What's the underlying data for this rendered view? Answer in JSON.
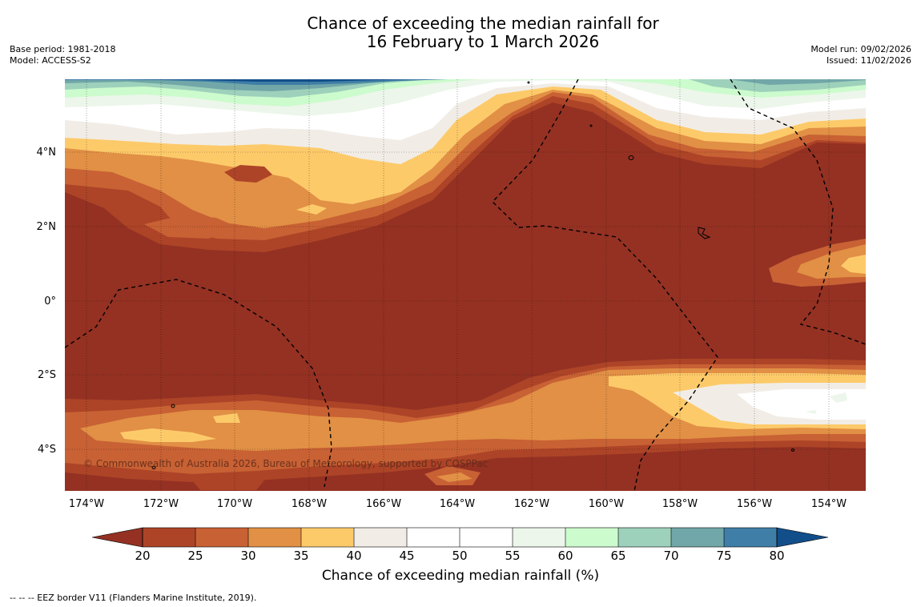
{
  "title": {
    "line1": "Chance of exceeding the median rainfall for",
    "line2": "16 February to 1 March 2026"
  },
  "meta_left": {
    "base_period": "Base period: 1981-2018",
    "model": "Model: ACCESS-S2"
  },
  "meta_right": {
    "model_run": "Model run: 09/02/2026",
    "issued": "Issued: 11/02/2026"
  },
  "map": {
    "lat_ticks": [
      "4°N",
      "2°N",
      "0°",
      "2°S",
      "4°S"
    ],
    "lon_ticks": [
      "174°W",
      "172°W",
      "170°W",
      "168°W",
      "166°W",
      "164°W",
      "162°W",
      "160°W",
      "158°W",
      "156°W",
      "154°W"
    ],
    "copyright": "© Commonwealth of Australia 2026, Bureau of Meteorology, supported by COSPPac",
    "base_color": "#943123"
  },
  "colorbar": {
    "ticks": [
      "20",
      "25",
      "30",
      "35",
      "40",
      "45",
      "50",
      "55",
      "60",
      "65",
      "70",
      "75",
      "80"
    ],
    "colors": [
      "#943123",
      "#ad4427",
      "#c86134",
      "#e19045",
      "#fdca6a",
      "#f1ede6",
      "#ffffff",
      "#ffffff",
      "#ecf6ea",
      "#ccfbcd",
      "#9ed1bb",
      "#72a7a9",
      "#3f7ea6",
      "#124e8a"
    ],
    "label": "Chance of exceeding median rainfall (%)"
  },
  "footnote": "--  --  -- EEZ border V11 (Flanders Marine Institute, 2019)."
}
